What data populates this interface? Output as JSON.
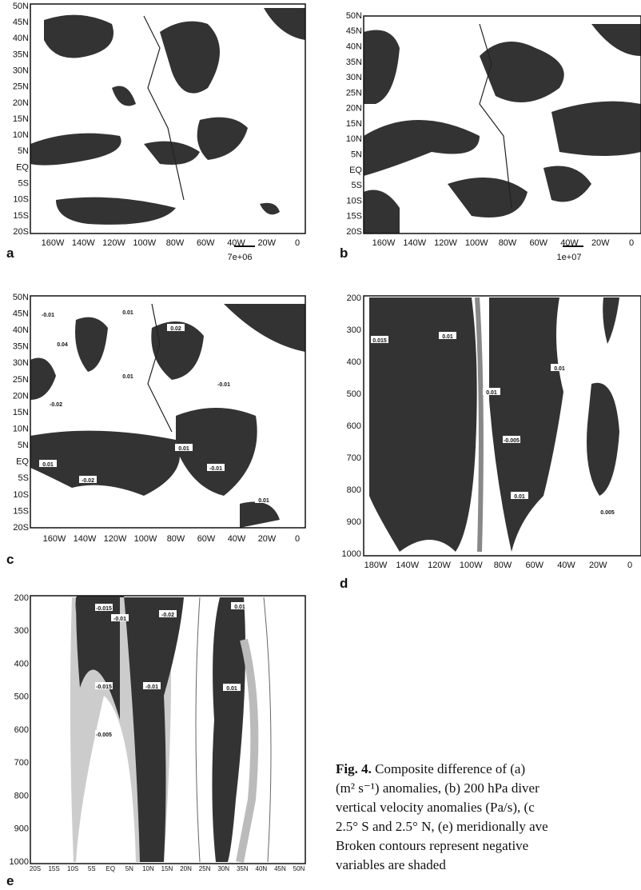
{
  "panels": [
    {
      "letter": "a",
      "yticks": [
        "50N",
        "45N",
        "40N",
        "35N",
        "30N",
        "25N",
        "20N",
        "15N",
        "10N",
        "5N",
        "EQ",
        "5S",
        "10S",
        "15S",
        "20S"
      ],
      "xticks": [
        "160W",
        "140W",
        "120W",
        "100W",
        "80W",
        "60W",
        "40W",
        "20W",
        "0"
      ],
      "vector_scale": "7e+06"
    },
    {
      "letter": "b",
      "yticks": [
        "50N",
        "45N",
        "40N",
        "35N",
        "30N",
        "25N",
        "20N",
        "15N",
        "10N",
        "5N",
        "EQ",
        "5S",
        "10S",
        "15S",
        "20S"
      ],
      "xticks": [
        "160W",
        "140W",
        "120W",
        "100W",
        "80W",
        "60W",
        "40W",
        "20W",
        "0"
      ],
      "vector_scale": "1e+07"
    },
    {
      "letter": "c",
      "yticks": [
        "50N",
        "45N",
        "40N",
        "35N",
        "30N",
        "25N",
        "20N",
        "15N",
        "10N",
        "5N",
        "EQ",
        "5S",
        "10S",
        "15S",
        "20S"
      ],
      "xticks": [
        "160W",
        "140W",
        "120W",
        "100W",
        "80W",
        "60W",
        "40W",
        "20W",
        "0"
      ],
      "contour_labels": [
        "-0.01",
        "0.04",
        "0.01",
        "0.02",
        "-0.02",
        "0.01",
        "-0.01",
        "0.01",
        "-0.02",
        "0.01",
        "-0.01",
        "0.01"
      ]
    },
    {
      "letter": "d",
      "yticks": [
        "200",
        "300",
        "400",
        "500",
        "600",
        "700",
        "800",
        "900",
        "1000"
      ],
      "xticks": [
        "180W",
        "140W",
        "120W",
        "100W",
        "80W",
        "60W",
        "40W",
        "20W",
        "0"
      ],
      "contour_labels": [
        "0.015",
        "0.01",
        "0.01",
        "-0.005",
        "0.01",
        "0.01",
        "0.005"
      ]
    },
    {
      "letter": "e",
      "yticks": [
        "200",
        "300",
        "400",
        "500",
        "600",
        "700",
        "800",
        "900",
        "1000"
      ],
      "xticks": [
        "20S",
        "15S",
        "10S",
        "5S",
        "EQ",
        "5N",
        "10N",
        "15N",
        "20N",
        "25N",
        "30N",
        "35N",
        "40N",
        "45N",
        "50N"
      ],
      "contour_labels": [
        "-0.015",
        "-0.02",
        "-0.01",
        "-0.015",
        "-0.01",
        "0.01",
        "-0.005",
        "0.01"
      ]
    }
  ],
  "caption": {
    "label": "Fig. 4.",
    "lines": [
      " Composite difference of (a)",
      "(m² s⁻¹) anomalies, (b) 200 hPa diver",
      "vertical velocity anomalies (Pa/s), (c",
      "2.5° S and 2.5° N, (e) meridionally ave",
      "Broken contours represent negative",
      "variables are shaded"
    ]
  }
}
